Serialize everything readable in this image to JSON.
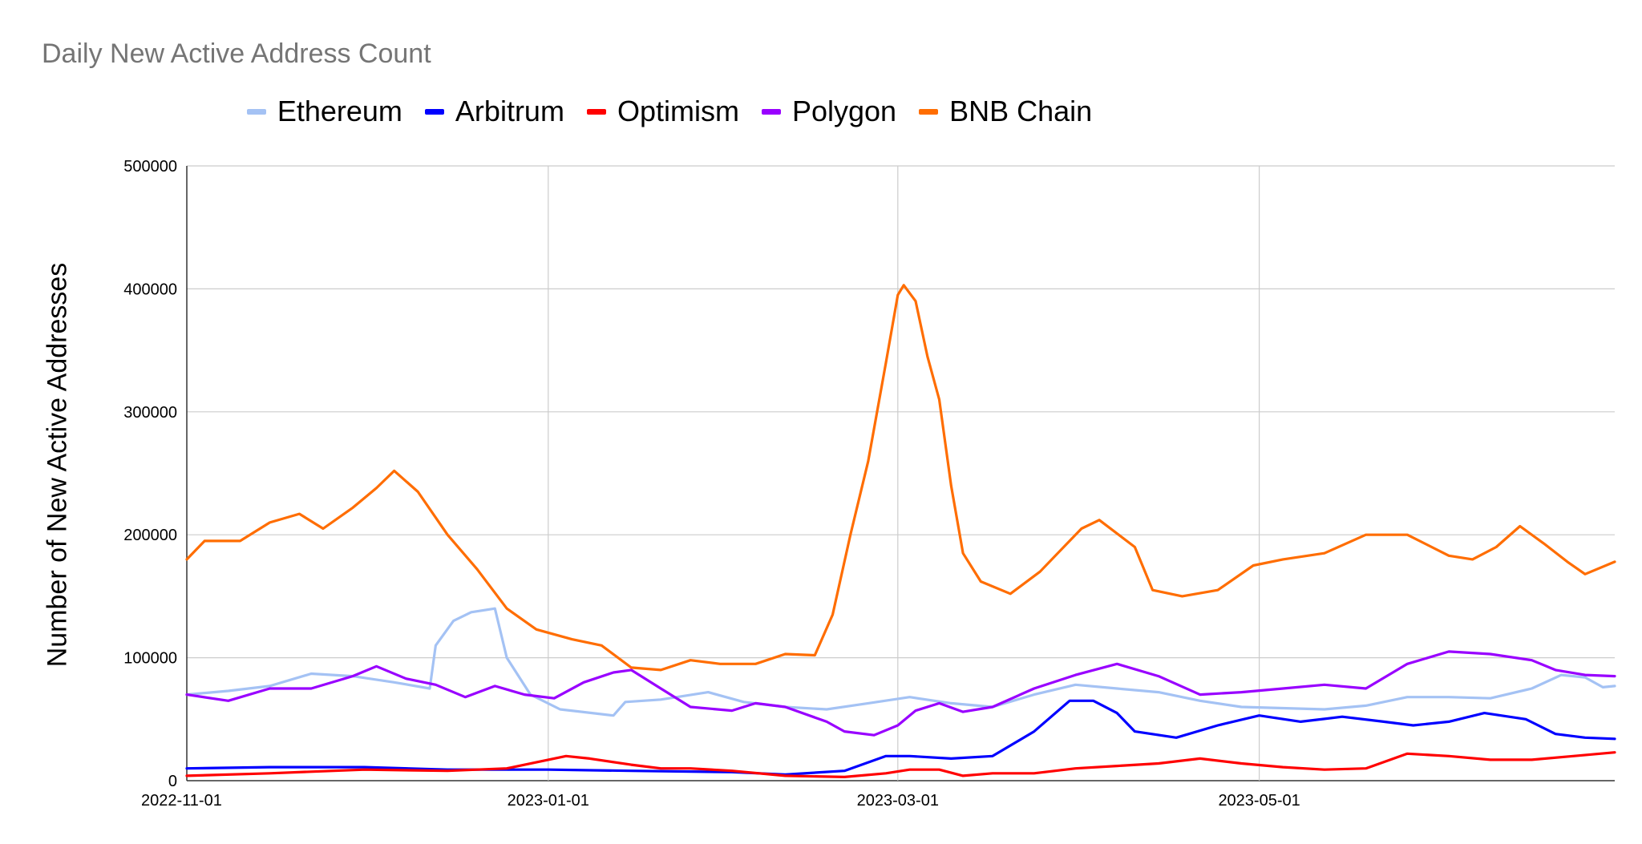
{
  "chart_data": {
    "type": "line",
    "title": "Daily New Active Address Count",
    "xlabel": "",
    "ylabel": "Number of New Active Addresses",
    "x_range": [
      "2022-11-01",
      "2023-06-30"
    ],
    "x_ticks": [
      "2022-11-01",
      "2023-01-01",
      "2023-03-01",
      "2023-05-01"
    ],
    "ylim": [
      0,
      500000
    ],
    "y_ticks": [
      "0",
      "100000",
      "200000",
      "300000",
      "400000",
      "500000"
    ],
    "grid": true,
    "legend_position": "top",
    "series": [
      {
        "name": "Ethereum",
        "color": "#a4c2f4",
        "points": [
          [
            "2022-11-01",
            70000
          ],
          [
            "2022-11-08",
            73000
          ],
          [
            "2022-11-15",
            77000
          ],
          [
            "2022-11-22",
            87000
          ],
          [
            "2022-11-29",
            85000
          ],
          [
            "2022-12-06",
            80000
          ],
          [
            "2022-12-12",
            75000
          ],
          [
            "2022-12-13",
            110000
          ],
          [
            "2022-12-16",
            130000
          ],
          [
            "2022-12-19",
            137000
          ],
          [
            "2022-12-23",
            140000
          ],
          [
            "2022-12-25",
            100000
          ],
          [
            "2022-12-29",
            70000
          ],
          [
            "2023-01-03",
            58000
          ],
          [
            "2023-01-12",
            53000
          ],
          [
            "2023-01-14",
            64000
          ],
          [
            "2023-01-20",
            66000
          ],
          [
            "2023-01-28",
            72000
          ],
          [
            "2023-02-03",
            64000
          ],
          [
            "2023-02-10",
            60000
          ],
          [
            "2023-02-17",
            58000
          ],
          [
            "2023-02-24",
            63000
          ],
          [
            "2023-03-03",
            68000
          ],
          [
            "2023-03-10",
            63000
          ],
          [
            "2023-03-17",
            60000
          ],
          [
            "2023-03-24",
            70000
          ],
          [
            "2023-03-31",
            78000
          ],
          [
            "2023-04-07",
            75000
          ],
          [
            "2023-04-14",
            72000
          ],
          [
            "2023-04-21",
            65000
          ],
          [
            "2023-04-28",
            60000
          ],
          [
            "2023-05-05",
            59000
          ],
          [
            "2023-05-12",
            58000
          ],
          [
            "2023-05-19",
            61000
          ],
          [
            "2023-05-26",
            68000
          ],
          [
            "2023-06-02",
            68000
          ],
          [
            "2023-06-09",
            67000
          ],
          [
            "2023-06-16",
            75000
          ],
          [
            "2023-06-21",
            86000
          ],
          [
            "2023-06-25",
            84000
          ],
          [
            "2023-06-28",
            76000
          ],
          [
            "2023-06-30",
            77000
          ]
        ]
      },
      {
        "name": "Arbitrum",
        "color": "#0000ff",
        "points": [
          [
            "2022-11-01",
            10000
          ],
          [
            "2022-11-15",
            11000
          ],
          [
            "2022-12-01",
            11000
          ],
          [
            "2022-12-15",
            9000
          ],
          [
            "2023-01-01",
            9000
          ],
          [
            "2023-01-15",
            8000
          ],
          [
            "2023-02-01",
            7000
          ],
          [
            "2023-02-10",
            5000
          ],
          [
            "2023-02-20",
            8000
          ],
          [
            "2023-02-27",
            20000
          ],
          [
            "2023-03-03",
            20000
          ],
          [
            "2023-03-10",
            18000
          ],
          [
            "2023-03-17",
            20000
          ],
          [
            "2023-03-24",
            40000
          ],
          [
            "2023-03-30",
            65000
          ],
          [
            "2023-04-03",
            65000
          ],
          [
            "2023-04-07",
            55000
          ],
          [
            "2023-04-10",
            40000
          ],
          [
            "2023-04-17",
            35000
          ],
          [
            "2023-04-24",
            45000
          ],
          [
            "2023-05-01",
            53000
          ],
          [
            "2023-05-08",
            48000
          ],
          [
            "2023-05-15",
            52000
          ],
          [
            "2023-05-22",
            48000
          ],
          [
            "2023-05-27",
            45000
          ],
          [
            "2023-06-02",
            48000
          ],
          [
            "2023-06-08",
            55000
          ],
          [
            "2023-06-15",
            50000
          ],
          [
            "2023-06-20",
            38000
          ],
          [
            "2023-06-25",
            35000
          ],
          [
            "2023-06-30",
            34000
          ]
        ]
      },
      {
        "name": "Optimism",
        "color": "#ff0000",
        "points": [
          [
            "2022-11-01",
            4000
          ],
          [
            "2022-11-15",
            6000
          ],
          [
            "2022-12-01",
            9000
          ],
          [
            "2022-12-15",
            8000
          ],
          [
            "2022-12-25",
            10000
          ],
          [
            "2023-01-01",
            17000
          ],
          [
            "2023-01-04",
            20000
          ],
          [
            "2023-01-08",
            18000
          ],
          [
            "2023-01-15",
            13000
          ],
          [
            "2023-01-20",
            10000
          ],
          [
            "2023-01-25",
            10000
          ],
          [
            "2023-02-01",
            8000
          ],
          [
            "2023-02-10",
            4000
          ],
          [
            "2023-02-20",
            3000
          ],
          [
            "2023-02-27",
            6000
          ],
          [
            "2023-03-03",
            9000
          ],
          [
            "2023-03-08",
            9000
          ],
          [
            "2023-03-12",
            4000
          ],
          [
            "2023-03-17",
            6000
          ],
          [
            "2023-03-24",
            6000
          ],
          [
            "2023-03-31",
            10000
          ],
          [
            "2023-04-07",
            12000
          ],
          [
            "2023-04-14",
            14000
          ],
          [
            "2023-04-21",
            18000
          ],
          [
            "2023-04-28",
            14000
          ],
          [
            "2023-05-05",
            11000
          ],
          [
            "2023-05-12",
            9000
          ],
          [
            "2023-05-19",
            10000
          ],
          [
            "2023-05-26",
            22000
          ],
          [
            "2023-06-02",
            20000
          ],
          [
            "2023-06-09",
            17000
          ],
          [
            "2023-06-16",
            17000
          ],
          [
            "2023-06-23",
            20000
          ],
          [
            "2023-06-30",
            23000
          ]
        ]
      },
      {
        "name": "Polygon",
        "color": "#9900ff",
        "points": [
          [
            "2022-11-01",
            70000
          ],
          [
            "2022-11-08",
            65000
          ],
          [
            "2022-11-15",
            75000
          ],
          [
            "2022-11-22",
            75000
          ],
          [
            "2022-11-29",
            85000
          ],
          [
            "2022-12-03",
            93000
          ],
          [
            "2022-12-08",
            83000
          ],
          [
            "2022-12-13",
            78000
          ],
          [
            "2022-12-18",
            68000
          ],
          [
            "2022-12-23",
            77000
          ],
          [
            "2022-12-28",
            70000
          ],
          [
            "2023-01-02",
            67000
          ],
          [
            "2023-01-07",
            80000
          ],
          [
            "2023-01-12",
            88000
          ],
          [
            "2023-01-15",
            90000
          ],
          [
            "2023-01-20",
            75000
          ],
          [
            "2023-01-25",
            60000
          ],
          [
            "2023-02-01",
            57000
          ],
          [
            "2023-02-05",
            63000
          ],
          [
            "2023-02-10",
            60000
          ],
          [
            "2023-02-17",
            48000
          ],
          [
            "2023-02-20",
            40000
          ],
          [
            "2023-02-25",
            37000
          ],
          [
            "2023-03-01",
            45000
          ],
          [
            "2023-03-04",
            57000
          ],
          [
            "2023-03-08",
            63000
          ],
          [
            "2023-03-12",
            56000
          ],
          [
            "2023-03-17",
            60000
          ],
          [
            "2023-03-24",
            75000
          ],
          [
            "2023-03-31",
            86000
          ],
          [
            "2023-04-07",
            95000
          ],
          [
            "2023-04-14",
            85000
          ],
          [
            "2023-04-21",
            70000
          ],
          [
            "2023-04-28",
            72000
          ],
          [
            "2023-05-05",
            75000
          ],
          [
            "2023-05-12",
            78000
          ],
          [
            "2023-05-19",
            75000
          ],
          [
            "2023-05-26",
            95000
          ],
          [
            "2023-06-02",
            105000
          ],
          [
            "2023-06-09",
            103000
          ],
          [
            "2023-06-16",
            98000
          ],
          [
            "2023-06-20",
            90000
          ],
          [
            "2023-06-25",
            86000
          ],
          [
            "2023-06-30",
            85000
          ]
        ]
      },
      {
        "name": "BNB Chain",
        "color": "#ff6d01",
        "points": [
          [
            "2022-11-01",
            180000
          ],
          [
            "2022-11-04",
            195000
          ],
          [
            "2022-11-10",
            195000
          ],
          [
            "2022-11-15",
            210000
          ],
          [
            "2022-11-20",
            217000
          ],
          [
            "2022-11-24",
            205000
          ],
          [
            "2022-11-29",
            222000
          ],
          [
            "2022-12-03",
            238000
          ],
          [
            "2022-12-06",
            252000
          ],
          [
            "2022-12-10",
            235000
          ],
          [
            "2022-12-15",
            200000
          ],
          [
            "2022-12-20",
            172000
          ],
          [
            "2022-12-25",
            140000
          ],
          [
            "2022-12-30",
            123000
          ],
          [
            "2023-01-05",
            115000
          ],
          [
            "2023-01-10",
            110000
          ],
          [
            "2023-01-15",
            92000
          ],
          [
            "2023-01-20",
            90000
          ],
          [
            "2023-01-25",
            98000
          ],
          [
            "2023-01-30",
            95000
          ],
          [
            "2023-02-05",
            95000
          ],
          [
            "2023-02-10",
            103000
          ],
          [
            "2023-02-15",
            102000
          ],
          [
            "2023-02-18",
            135000
          ],
          [
            "2023-02-21",
            200000
          ],
          [
            "2023-02-24",
            260000
          ],
          [
            "2023-02-27",
            340000
          ],
          [
            "2023-03-01",
            395000
          ],
          [
            "2023-03-02",
            403000
          ],
          [
            "2023-03-04",
            390000
          ],
          [
            "2023-03-06",
            345000
          ],
          [
            "2023-03-08",
            310000
          ],
          [
            "2023-03-10",
            240000
          ],
          [
            "2023-03-12",
            185000
          ],
          [
            "2023-03-15",
            162000
          ],
          [
            "2023-03-20",
            152000
          ],
          [
            "2023-03-25",
            170000
          ],
          [
            "2023-03-28",
            185000
          ],
          [
            "2023-04-01",
            205000
          ],
          [
            "2023-04-04",
            212000
          ],
          [
            "2023-04-10",
            190000
          ],
          [
            "2023-04-13",
            155000
          ],
          [
            "2023-04-18",
            150000
          ],
          [
            "2023-04-24",
            155000
          ],
          [
            "2023-04-30",
            175000
          ],
          [
            "2023-05-05",
            180000
          ],
          [
            "2023-05-12",
            185000
          ],
          [
            "2023-05-19",
            200000
          ],
          [
            "2023-05-26",
            200000
          ],
          [
            "2023-06-02",
            183000
          ],
          [
            "2023-06-06",
            180000
          ],
          [
            "2023-06-10",
            190000
          ],
          [
            "2023-06-14",
            207000
          ],
          [
            "2023-06-18",
            193000
          ],
          [
            "2023-06-22",
            178000
          ],
          [
            "2023-06-25",
            168000
          ],
          [
            "2023-06-30",
            178000
          ]
        ]
      }
    ]
  }
}
